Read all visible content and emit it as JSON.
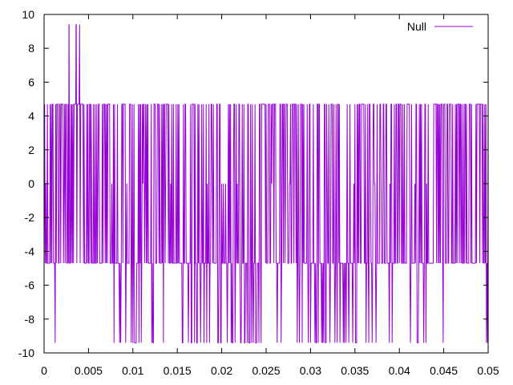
{
  "chart_data": {
    "type": "line",
    "title": "",
    "xlabel": "",
    "ylabel": "",
    "xlim": [
      0,
      0.05
    ],
    "ylim": [
      -10,
      10
    ],
    "x_ticks": [
      "0",
      "0.005",
      "0.01",
      "0.015",
      "0.02",
      "0.025",
      "0.03",
      "0.035",
      "0.04",
      "0.045",
      "0.05"
    ],
    "y_ticks": [
      "10",
      "8",
      "6",
      "4",
      "2",
      "0",
      "-2",
      "-4",
      "-6",
      "-8",
      "-10"
    ],
    "grid": false,
    "legend_position": "top-right",
    "series": [
      {
        "name": "Null",
        "color": "#9400d3",
        "levels": [
          9.4,
          4.7,
          0,
          -4.7,
          -9.4
        ],
        "x_start": 0,
        "x_end": 0.05,
        "sample_interval": 6.25e-05,
        "peaks_at_9_4": [
          0.0028,
          0.0036,
          0.004
        ],
        "troughs_at_minus_9_4_ranges": [
          [
            0.0012,
            0.0013
          ],
          [
            0.0058,
            0.0059
          ],
          [
            0.0074,
            0.0135
          ],
          [
            0.0155,
            0.0245
          ],
          [
            0.026,
            0.0275
          ],
          [
            0.0285,
            0.0375
          ],
          [
            0.0385,
            0.0395
          ],
          [
            0.041,
            0.0435
          ],
          [
            0.0448,
            0.045
          ],
          [
            0.0495,
            0.05
          ]
        ]
      }
    ]
  }
}
